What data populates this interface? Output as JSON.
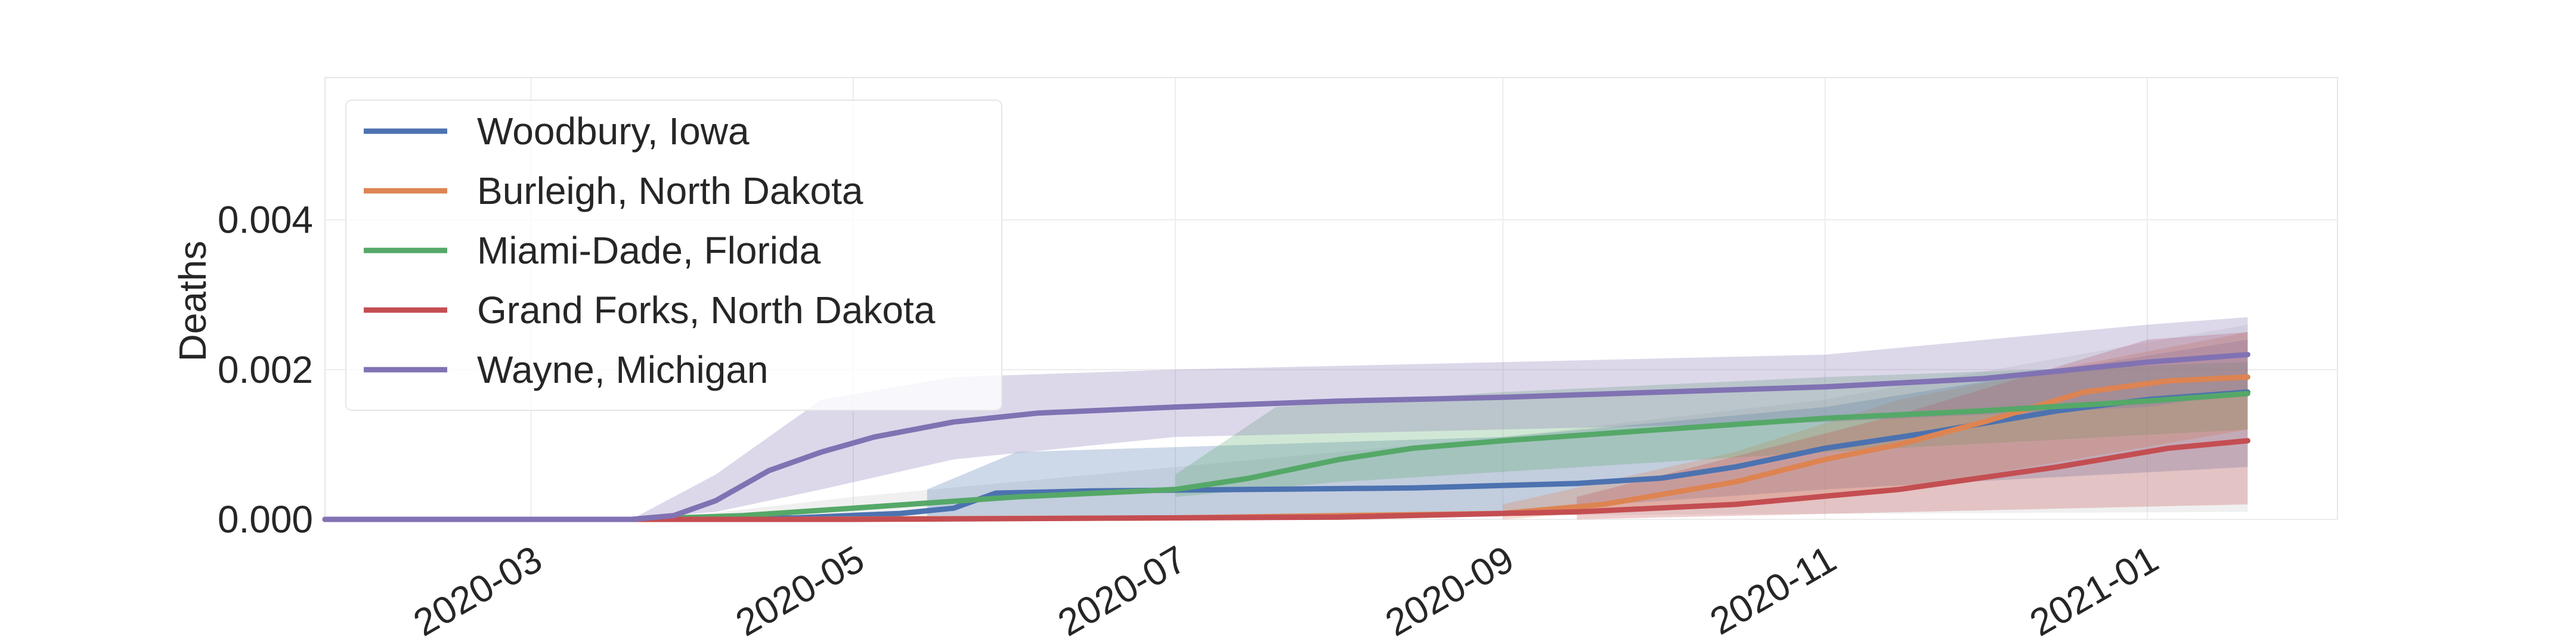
{
  "chart_data": {
    "type": "line",
    "title": "",
    "xlabel": "",
    "ylabel": "Deaths",
    "x_axis_type": "date",
    "xlim": [
      "2020-01-22",
      "2021-02-06"
    ],
    "ylim": [
      0,
      0.0059
    ],
    "x_ticks": [
      "2020-03-01",
      "2020-05-01",
      "2020-07-01",
      "2020-09-01",
      "2020-11-01",
      "2021-01-01"
    ],
    "x_tick_labels": [
      "2020-03",
      "2020-05",
      "2020-07",
      "2020-09",
      "2020-11",
      "2021-01"
    ],
    "y_ticks": [
      0,
      0.002,
      0.004
    ],
    "y_tick_labels": [
      "0.000",
      "0.002",
      "0.004"
    ],
    "grid": true,
    "legend_position": "top-left",
    "background_band": {
      "description_visible": false,
      "upper": [
        [
          "2020-03-25",
          0
        ],
        [
          "2020-05-01",
          0.0003
        ],
        [
          "2020-07-01",
          0.0007
        ],
        [
          "2020-09-01",
          0.0011
        ],
        [
          "2020-11-01",
          0.0016
        ],
        [
          "2021-01-20",
          0.0026
        ]
      ],
      "lower": [
        [
          "2020-03-25",
          0
        ],
        [
          "2021-01-20",
          0.0001
        ]
      ]
    },
    "series": [
      {
        "name": "Woodbury, Iowa",
        "color": "#4c72b0",
        "points": [
          [
            "2020-01-22",
            0
          ],
          [
            "2020-04-01",
            0
          ],
          [
            "2020-04-20",
            2e-05
          ],
          [
            "2020-05-10",
            8e-05
          ],
          [
            "2020-05-20",
            0.00015
          ],
          [
            "2020-05-28",
            0.00035
          ],
          [
            "2020-06-15",
            0.00038
          ],
          [
            "2020-07-15",
            0.0004
          ],
          [
            "2020-08-15",
            0.00042
          ],
          [
            "2020-09-15",
            0.00048
          ],
          [
            "2020-10-01",
            0.00055
          ],
          [
            "2020-10-15",
            0.0007
          ],
          [
            "2020-11-01",
            0.00095
          ],
          [
            "2020-11-20",
            0.00115
          ],
          [
            "2020-12-15",
            0.00145
          ],
          [
            "2021-01-01",
            0.0016
          ],
          [
            "2021-01-20",
            0.0017
          ]
        ],
        "band_upper": [
          [
            "2020-05-15",
            0.0004
          ],
          [
            "2020-06-01",
            0.0009
          ],
          [
            "2020-09-01",
            0.0011
          ],
          [
            "2020-11-01",
            0.0015
          ],
          [
            "2021-01-20",
            0.0024
          ]
        ],
        "band_lower": [
          [
            "2020-05-15",
            0
          ],
          [
            "2020-09-01",
            0.0001
          ],
          [
            "2020-11-01",
            0.0004
          ],
          [
            "2021-01-20",
            0.0007
          ]
        ]
      },
      {
        "name": "Burleigh, North Dakota",
        "color": "#dd8452",
        "points": [
          [
            "2020-01-22",
            0
          ],
          [
            "2020-04-15",
            0
          ],
          [
            "2020-07-01",
            2e-05
          ],
          [
            "2020-09-01",
            8e-05
          ],
          [
            "2020-09-20",
            0.0002
          ],
          [
            "2020-10-15",
            0.0005
          ],
          [
            "2020-11-01",
            0.0008
          ],
          [
            "2020-11-15",
            0.001
          ],
          [
            "2020-12-01",
            0.0013
          ],
          [
            "2020-12-20",
            0.0017
          ],
          [
            "2021-01-05",
            0.00185
          ],
          [
            "2021-01-20",
            0.0019
          ]
        ],
        "band_upper": [
          [
            "2020-09-01",
            0.0002
          ],
          [
            "2020-10-15",
            0.0009
          ],
          [
            "2020-11-15",
            0.0016
          ],
          [
            "2021-01-20",
            0.0025
          ]
        ],
        "band_lower": [
          [
            "2020-09-01",
            0
          ],
          [
            "2020-11-15",
            0.0004
          ],
          [
            "2021-01-20",
            0.0012
          ]
        ]
      },
      {
        "name": "Miami-Dade, Florida",
        "color": "#55a868",
        "points": [
          [
            "2020-01-22",
            0
          ],
          [
            "2020-03-20",
            0
          ],
          [
            "2020-04-10",
            5e-05
          ],
          [
            "2020-05-01",
            0.00015
          ],
          [
            "2020-06-01",
            0.0003
          ],
          [
            "2020-07-01",
            0.0004
          ],
          [
            "2020-07-15",
            0.00055
          ],
          [
            "2020-08-01",
            0.0008
          ],
          [
            "2020-08-15",
            0.00095
          ],
          [
            "2020-09-01",
            0.00105
          ],
          [
            "2020-10-01",
            0.0012
          ],
          [
            "2020-11-01",
            0.00135
          ],
          [
            "2020-12-01",
            0.00145
          ],
          [
            "2021-01-01",
            0.00158
          ],
          [
            "2021-01-20",
            0.00168
          ]
        ],
        "band_upper": [
          [
            "2020-07-01",
            0.0006
          ],
          [
            "2020-07-20",
            0.0015
          ],
          [
            "2020-09-01",
            0.0017
          ],
          [
            "2020-11-01",
            0.0019
          ],
          [
            "2021-01-20",
            0.0021
          ]
        ],
        "band_lower": [
          [
            "2020-07-01",
            0.0003
          ],
          [
            "2020-08-01",
            0.0005
          ],
          [
            "2020-11-01",
            0.0009
          ],
          [
            "2021-01-20",
            0.0012
          ]
        ]
      },
      {
        "name": "Grand Forks, North Dakota",
        "color": "#c44e52",
        "points": [
          [
            "2020-01-22",
            0
          ],
          [
            "2020-05-01",
            0
          ],
          [
            "2020-08-01",
            3e-05
          ],
          [
            "2020-09-15",
            0.0001
          ],
          [
            "2020-10-15",
            0.0002
          ],
          [
            "2020-11-15",
            0.0004
          ],
          [
            "2020-12-15",
            0.0007
          ],
          [
            "2021-01-05",
            0.00095
          ],
          [
            "2021-01-20",
            0.00105
          ]
        ],
        "band_upper": [
          [
            "2020-09-15",
            0.0003
          ],
          [
            "2020-11-15",
            0.0014
          ],
          [
            "2021-01-01",
            0.0024
          ],
          [
            "2021-01-20",
            0.0025
          ]
        ],
        "band_lower": [
          [
            "2020-09-15",
            0
          ],
          [
            "2021-01-20",
            0.0002
          ]
        ]
      },
      {
        "name": "Wayne, Michigan",
        "color": "#8172b3",
        "points": [
          [
            "2020-01-22",
            0
          ],
          [
            "2020-03-20",
            0
          ],
          [
            "2020-03-28",
            5e-05
          ],
          [
            "2020-04-05",
            0.00025
          ],
          [
            "2020-04-15",
            0.00065
          ],
          [
            "2020-04-25",
            0.0009
          ],
          [
            "2020-05-05",
            0.0011
          ],
          [
            "2020-05-20",
            0.0013
          ],
          [
            "2020-06-05",
            0.00142
          ],
          [
            "2020-07-01",
            0.0015
          ],
          [
            "2020-08-01",
            0.00158
          ],
          [
            "2020-09-01",
            0.00163
          ],
          [
            "2020-10-01",
            0.0017
          ],
          [
            "2020-11-01",
            0.00177
          ],
          [
            "2020-12-01",
            0.00188
          ],
          [
            "2021-01-01",
            0.0021
          ],
          [
            "2021-01-20",
            0.0022
          ]
        ],
        "band_upper": [
          [
            "2020-03-20",
            0
          ],
          [
            "2020-04-05",
            0.0006
          ],
          [
            "2020-04-25",
            0.0016
          ],
          [
            "2020-05-20",
            0.0019
          ],
          [
            "2020-07-01",
            0.002
          ],
          [
            "2020-09-01",
            0.0021
          ],
          [
            "2020-11-01",
            0.0022
          ],
          [
            "2021-01-01",
            0.0026
          ],
          [
            "2021-01-20",
            0.0027
          ]
        ],
        "band_lower": [
          [
            "2020-03-20",
            0
          ],
          [
            "2020-04-05",
            0.0001
          ],
          [
            "2020-04-25",
            0.0004
          ],
          [
            "2020-05-20",
            0.0008
          ],
          [
            "2020-07-01",
            0.0011
          ],
          [
            "2020-09-01",
            0.0012
          ],
          [
            "2020-11-01",
            0.0013
          ],
          [
            "2021-01-01",
            0.0015
          ],
          [
            "2021-01-20",
            0.0017
          ]
        ]
      }
    ]
  }
}
